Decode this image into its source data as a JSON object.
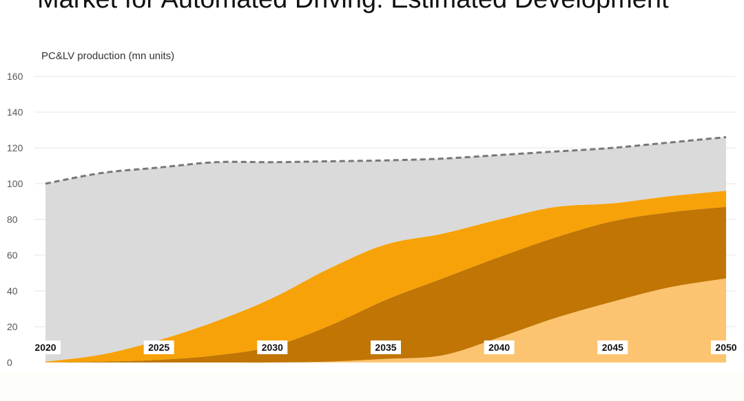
{
  "chart_data": {
    "type": "area",
    "title": "Market for Automated Driving: Estimated Development",
    "ylabel": "PC&LV production (mn units)",
    "xlabel": "",
    "x": [
      2020,
      2022.5,
      2025,
      2027.5,
      2030,
      2032.5,
      2035,
      2037.5,
      2040,
      2042.5,
      2045,
      2047.5,
      2050
    ],
    "x_ticks": [
      "2020",
      "2025",
      "2030",
      "2035",
      "2040",
      "2045",
      "2050"
    ],
    "y_ticks": [
      0,
      20,
      40,
      60,
      80,
      100,
      120,
      140,
      160
    ],
    "ylim": [
      0,
      160
    ],
    "xlim": [
      2020,
      2050
    ],
    "grid": true,
    "stacked": true,
    "series": [
      {
        "color": "#fcc470",
        "values": [
          0,
          0,
          0,
          0,
          0,
          0.5,
          2,
          4,
          14,
          25,
          34,
          42,
          47
        ]
      },
      {
        "color": "#c07504",
        "values": [
          0,
          0.5,
          1.5,
          4,
          9,
          20,
          33,
          43,
          45,
          45,
          45,
          42,
          40
        ]
      },
      {
        "color": "#f7a208",
        "values": [
          0.5,
          4,
          11,
          19,
          27,
          32,
          31,
          25,
          21,
          17,
          10,
          9,
          9
        ]
      },
      {
        "color": "#dadada",
        "values": [
          99.5,
          101.5,
          96.5,
          89,
          76,
          60,
          47,
          42,
          36,
          31,
          31,
          30,
          30
        ]
      }
    ],
    "total_line": {
      "style": "dashed",
      "color": "#777777",
      "values": [
        100,
        106,
        109,
        112,
        112,
        112.5,
        113,
        114,
        116,
        118,
        120,
        123,
        126
      ]
    }
  }
}
